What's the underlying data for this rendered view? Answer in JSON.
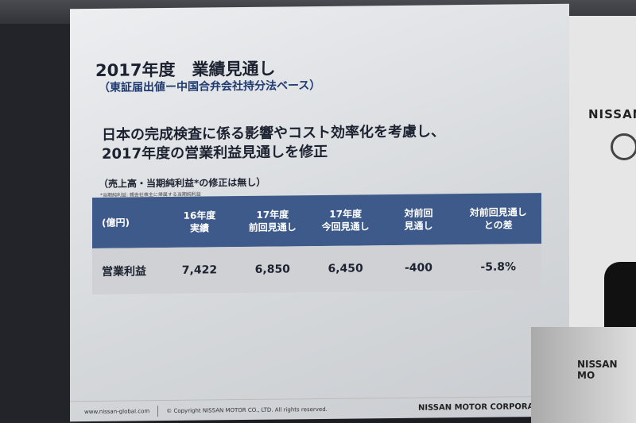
{
  "slide": {
    "title": "2017年度　業績見通し",
    "subtitle": "（東証届出値ー中国合弁会社持分法ベース）",
    "lead_lines": [
      "日本の完成検査に係る影響やコスト効率化を考慮し、",
      "2017年度の営業利益見通しを修正"
    ],
    "note": "（売上高・当期純利益*の修正は無し）",
    "footnote": "*当期純利益: 親会社株主に帰属する当期純利益",
    "table": {
      "headers": [
        [
          "(億円)"
        ],
        [
          "16年度",
          "実績"
        ],
        [
          "17年度",
          "前回見通し"
        ],
        [
          "17年度",
          "今回見通し"
        ],
        [
          "対前回",
          "見通し"
        ],
        [
          "対前回見通し",
          "との差"
        ]
      ],
      "row": [
        "営業利益",
        "7,422",
        "6,850",
        "6,450",
        "-400",
        "-5.8%"
      ]
    },
    "footer": {
      "url": "www.nissan-global.com",
      "copyright": "© Copyright NISSAN MOTOR CO., LTD. All rights reserved.",
      "corporation": "NISSAN MOTOR CORPORATION"
    },
    "colors": {
      "header": "#3d5a8a",
      "row": "#cfd1d4"
    }
  },
  "stage": {
    "backdrop_brand": "NISSAN",
    "podium_text": "NISSAN MO"
  }
}
